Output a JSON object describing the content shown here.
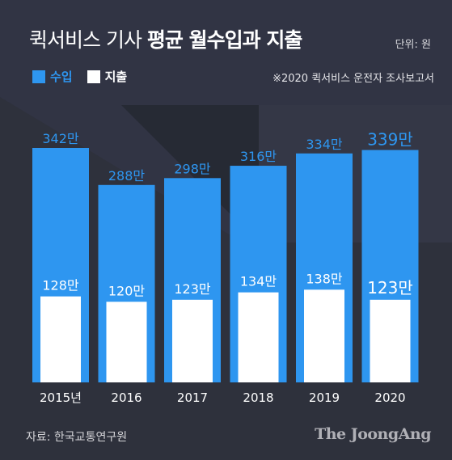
{
  "title_light": "퀵서비스 기사",
  "title_bold": "평균 월수입과 지출",
  "unit_label": "단위: 원",
  "note": "※2020 퀵서비스 운전자 조사보고서",
  "source": "자료: 한국교통연구원",
  "brand": "The JoongAng",
  "colors": {
    "income": "#2e96f0",
    "expense": "#ffffff",
    "background": "#2e313c"
  },
  "chart_data": {
    "type": "bar",
    "categories": [
      "2015년",
      "2016",
      "2017",
      "2018",
      "2019",
      "2020"
    ],
    "series": [
      {
        "name": "수입",
        "values": [
          342,
          288,
          298,
          316,
          334,
          339
        ],
        "labels": [
          "342만",
          "288만",
          "298만",
          "316만",
          "334만",
          "339만"
        ]
      },
      {
        "name": "지출",
        "values": [
          128,
          120,
          123,
          134,
          138,
          123
        ],
        "labels": [
          "128만",
          "120만",
          "123만",
          "134만",
          "138만",
          "123만"
        ]
      }
    ],
    "legend": "top-left",
    "grid": false,
    "ylim": [
      0,
      342
    ]
  }
}
